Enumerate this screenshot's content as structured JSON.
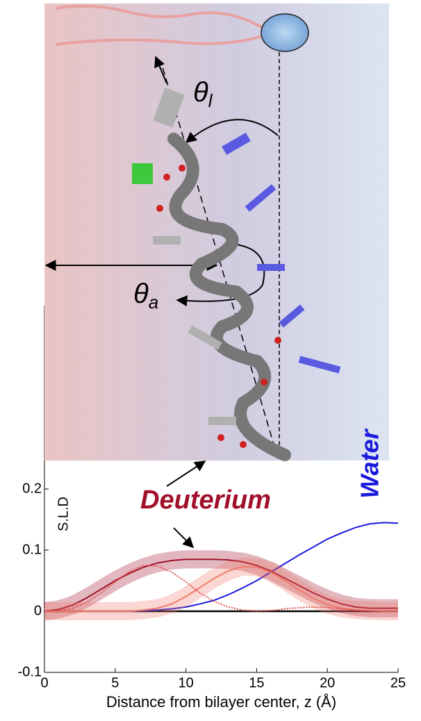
{
  "chart_data": {
    "type": "line",
    "x_label": "Distance from bilayer center, z (Å)",
    "y_label": "S.L.D",
    "xlim": [
      0,
      25
    ],
    "xticks": [
      0,
      5,
      10,
      15,
      20,
      25
    ],
    "ylim": [
      -0.1,
      0.5
    ],
    "yticks": [
      -0.1,
      0,
      0.1,
      0.2
    ],
    "x": [
      0,
      1,
      2,
      3,
      4,
      5,
      6,
      7,
      8,
      9,
      10,
      11,
      12,
      13,
      14,
      15,
      16,
      17,
      18,
      19,
      20,
      21,
      22,
      23,
      24,
      25
    ],
    "series": [
      {
        "name": "Water",
        "color": "#1a1adc",
        "style": "solid",
        "band": false,
        "values": [
          0,
          0,
          0,
          0,
          0,
          0,
          0,
          0.001,
          0.002,
          0.004,
          0.007,
          0.012,
          0.018,
          0.027,
          0.038,
          0.05,
          0.064,
          0.078,
          0.092,
          0.105,
          0.118,
          0.128,
          0.137,
          0.143,
          0.145,
          0.144
        ]
      },
      {
        "name": "Deuterium",
        "color": "#a0102a",
        "style": "solid",
        "band": true,
        "values": [
          0,
          0.003,
          0.01,
          0.022,
          0.036,
          0.05,
          0.062,
          0.072,
          0.079,
          0.083,
          0.085,
          0.085,
          0.085,
          0.084,
          0.081,
          0.075,
          0.066,
          0.054,
          0.042,
          0.03,
          0.02,
          0.012,
          0.007,
          0.005,
          0.005,
          0.005
        ]
      },
      {
        "color": "#f07a6a",
        "style": "solid",
        "band": true,
        "values": [
          0,
          0,
          0,
          0,
          0,
          0,
          0,
          0.002,
          0.005,
          0.012,
          0.024,
          0.039,
          0.054,
          0.066,
          0.073,
          0.072,
          0.064,
          0.05,
          0.035,
          0.021,
          0.011,
          0.005,
          0.002,
          0.001,
          0,
          0
        ]
      },
      {
        "color": "#e04848",
        "style": "dotted",
        "band": false,
        "values": [
          0,
          0.001,
          0.005,
          0.015,
          0.03,
          0.048,
          0.065,
          0.075,
          0.074,
          0.064,
          0.048,
          0.03,
          0.016,
          0.007,
          0.002,
          0,
          0.001,
          0.004,
          0.006,
          0.007,
          0.006,
          0.004,
          0.002,
          0.001,
          0,
          0
        ]
      }
    ],
    "annotations": {
      "theta_l": {
        "symbol": "θ",
        "subscript": "l"
      },
      "theta_a": {
        "symbol": "θ",
        "subscript": "a"
      }
    }
  }
}
